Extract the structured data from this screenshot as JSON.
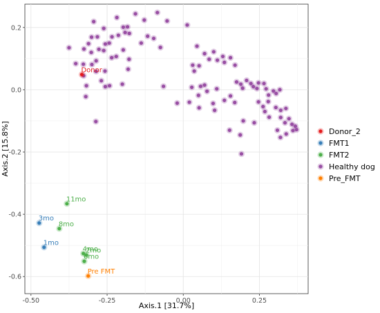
{
  "chart_data": {
    "type": "scatter",
    "xlabel": "Axis.1   [31.7%]",
    "ylabel": "Axis.2   [15.8%]",
    "xlim": [
      -0.52,
      0.41
    ],
    "ylim": [
      -0.655,
      0.275
    ],
    "x_ticks": [
      -0.5,
      -0.25,
      0.0,
      0.25
    ],
    "x_tick_labels": [
      "-0.50",
      "-0.25",
      "0.00",
      "0.25"
    ],
    "y_ticks": [
      0.2,
      0.0,
      -0.2,
      -0.4,
      -0.6
    ],
    "y_tick_labels": [
      "0.2",
      "0.0",
      "-0.2",
      "-0.4",
      "-0.6"
    ],
    "grid": true,
    "legend_position": "right",
    "series": [
      {
        "name": "Donor_2",
        "color": "#e41a1c",
        "points": [
          {
            "x": -0.333,
            "y": 0.049,
            "label": "Donor"
          }
        ]
      },
      {
        "name": "FMT1",
        "color": "#377eb8",
        "points": [
          {
            "x": -0.473,
            "y": -0.428,
            "label": "3mo"
          },
          {
            "x": -0.457,
            "y": -0.506,
            "label": "1mo"
          }
        ]
      },
      {
        "name": "FMT2",
        "color": "#4daf4a",
        "points": [
          {
            "x": -0.382,
            "y": -0.366,
            "label": "11mo"
          },
          {
            "x": -0.407,
            "y": -0.446,
            "label": "8mo"
          },
          {
            "x": -0.328,
            "y": -0.526,
            "label": "4mo"
          },
          {
            "x": -0.318,
            "y": -0.531,
            "label": "2mo"
          },
          {
            "x": -0.325,
            "y": -0.551,
            "label": "6mo"
          }
        ]
      },
      {
        "name": "Healthy dog",
        "color": "#984ea3",
        "points": [
          {
            "x": -0.157,
            "y": 0.244
          },
          {
            "x": -0.085,
            "y": 0.248
          },
          {
            "x": -0.218,
            "y": 0.232
          },
          {
            "x": -0.128,
            "y": 0.224
          },
          {
            "x": -0.294,
            "y": 0.219
          },
          {
            "x": -0.053,
            "y": 0.221
          },
          {
            "x": -0.197,
            "y": 0.201
          },
          {
            "x": -0.183,
            "y": 0.202
          },
          {
            "x": -0.261,
            "y": 0.197
          },
          {
            "x": 0.013,
            "y": 0.208
          },
          {
            "x": -0.191,
            "y": 0.184
          },
          {
            "x": -0.213,
            "y": 0.175
          },
          {
            "x": -0.177,
            "y": 0.181
          },
          {
            "x": -0.282,
            "y": 0.17
          },
          {
            "x": -0.117,
            "y": 0.172
          },
          {
            "x": -0.234,
            "y": 0.17
          },
          {
            "x": -0.097,
            "y": 0.165
          },
          {
            "x": -0.301,
            "y": 0.169
          },
          {
            "x": -0.138,
            "y": 0.15
          },
          {
            "x": -0.243,
            "y": 0.15
          },
          {
            "x": -0.256,
            "y": 0.147
          },
          {
            "x": -0.075,
            "y": 0.136
          },
          {
            "x": -0.311,
            "y": 0.148
          },
          {
            "x": -0.375,
            "y": 0.135
          },
          {
            "x": -0.197,
            "y": 0.128
          },
          {
            "x": -0.326,
            "y": 0.131
          },
          {
            "x": -0.277,
            "y": 0.13
          },
          {
            "x": -0.261,
            "y": 0.126
          },
          {
            "x": -0.302,
            "y": 0.12
          },
          {
            "x": -0.22,
            "y": 0.107
          },
          {
            "x": -0.178,
            "y": 0.098
          },
          {
            "x": -0.235,
            "y": 0.103
          },
          {
            "x": -0.286,
            "y": 0.093
          },
          {
            "x": -0.353,
            "y": 0.084
          },
          {
            "x": -0.328,
            "y": 0.082
          },
          {
            "x": -0.3,
            "y": 0.081
          },
          {
            "x": -0.181,
            "y": 0.066
          },
          {
            "x": -0.257,
            "y": 0.06
          },
          {
            "x": -0.286,
            "y": 0.059
          },
          {
            "x": -0.269,
            "y": 0.029
          },
          {
            "x": -0.2,
            "y": 0.018
          },
          {
            "x": -0.242,
            "y": 0.013
          },
          {
            "x": -0.256,
            "y": 0.01
          },
          {
            "x": -0.327,
            "y": 0.045
          },
          {
            "x": -0.318,
            "y": 0.013
          },
          {
            "x": -0.065,
            "y": 0.011
          },
          {
            "x": -0.02,
            "y": -0.043
          },
          {
            "x": -0.32,
            "y": -0.022
          },
          {
            "x": -0.287,
            "y": -0.102
          },
          {
            "x": 0.045,
            "y": 0.14
          },
          {
            "x": 0.052,
            "y": 0.077
          },
          {
            "x": 0.07,
            "y": 0.116
          },
          {
            "x": 0.085,
            "y": 0.098
          },
          {
            "x": 0.1,
            "y": 0.122
          },
          {
            "x": 0.112,
            "y": 0.095
          },
          {
            "x": 0.13,
            "y": 0.107
          },
          {
            "x": 0.135,
            "y": 0.088
          },
          {
            "x": 0.155,
            "y": 0.103
          },
          {
            "x": 0.17,
            "y": 0.079
          },
          {
            "x": 0.031,
            "y": 0.079
          },
          {
            "x": 0.036,
            "y": 0.06
          },
          {
            "x": 0.028,
            "y": 0.008
          },
          {
            "x": 0.057,
            "y": 0.011
          },
          {
            "x": 0.07,
            "y": 0.015
          },
          {
            "x": 0.078,
            "y": -0.005
          },
          {
            "x": 0.11,
            "y": 0.003
          },
          {
            "x": 0.05,
            "y": -0.018
          },
          {
            "x": 0.02,
            "y": -0.04
          },
          {
            "x": 0.052,
            "y": -0.058
          },
          {
            "x": 0.098,
            "y": -0.044
          },
          {
            "x": 0.103,
            "y": -0.066
          },
          {
            "x": 0.135,
            "y": -0.034
          },
          {
            "x": 0.155,
            "y": -0.02
          },
          {
            "x": 0.169,
            "y": -0.041
          },
          {
            "x": 0.175,
            "y": 0.025
          },
          {
            "x": 0.189,
            "y": 0.018
          },
          {
            "x": 0.195,
            "y": 0.005
          },
          {
            "x": 0.208,
            "y": 0.03
          },
          {
            "x": 0.222,
            "y": 0.02
          },
          {
            "x": 0.23,
            "y": 0.01
          },
          {
            "x": 0.242,
            "y": 0.004
          },
          {
            "x": 0.247,
            "y": 0.022
          },
          {
            "x": 0.265,
            "y": 0.02
          },
          {
            "x": 0.272,
            "y": 0.003
          },
          {
            "x": 0.28,
            "y": -0.017
          },
          {
            "x": 0.296,
            "y": -0.004
          },
          {
            "x": 0.305,
            "y": -0.012
          },
          {
            "x": 0.317,
            "y": 0.0
          },
          {
            "x": 0.247,
            "y": -0.039
          },
          {
            "x": 0.262,
            "y": -0.054
          },
          {
            "x": 0.279,
            "y": -0.038
          },
          {
            "x": 0.268,
            "y": -0.07
          },
          {
            "x": 0.282,
            "y": -0.088
          },
          {
            "x": 0.304,
            "y": -0.057
          },
          {
            "x": 0.32,
            "y": -0.066
          },
          {
            "x": 0.337,
            "y": -0.06
          },
          {
            "x": 0.32,
            "y": -0.089
          },
          {
            "x": 0.347,
            "y": -0.093
          },
          {
            "x": 0.357,
            "y": -0.111
          },
          {
            "x": 0.368,
            "y": -0.117
          },
          {
            "x": 0.334,
            "y": -0.106
          },
          {
            "x": 0.309,
            "y": -0.13
          },
          {
            "x": 0.319,
            "y": -0.153
          },
          {
            "x": 0.338,
            "y": -0.142
          },
          {
            "x": 0.36,
            "y": -0.131
          },
          {
            "x": 0.372,
            "y": -0.128
          },
          {
            "x": 0.187,
            "y": -0.145
          },
          {
            "x": 0.152,
            "y": -0.13
          },
          {
            "x": 0.191,
            "y": -0.206
          },
          {
            "x": 0.233,
            "y": -0.106
          },
          {
            "x": 0.197,
            "y": -0.1
          }
        ]
      },
      {
        "name": "Pre_FMT",
        "color": "#ff7f00",
        "points": [
          {
            "x": -0.312,
            "y": -0.598,
            "label": "Pre FMT"
          }
        ]
      }
    ]
  }
}
